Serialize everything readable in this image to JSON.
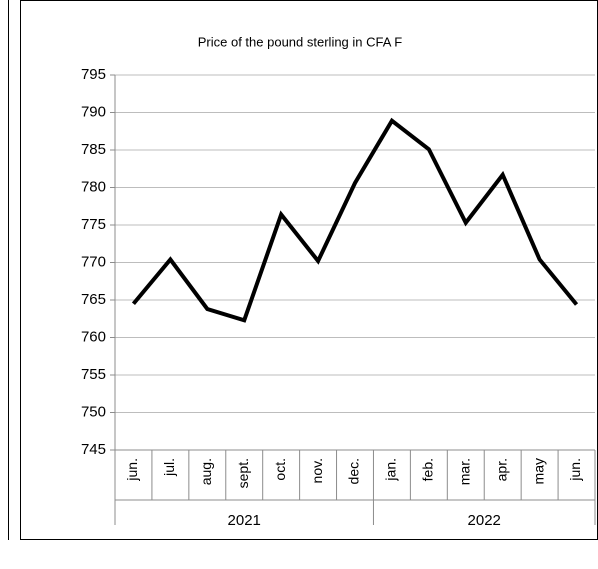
{
  "chart_data": {
    "type": "line",
    "title": "Price of the pound sterling in CFA F",
    "groups": [
      {
        "label": "2021",
        "categories": [
          "jun.",
          "jul.",
          "aug.",
          "sept.",
          "oct.",
          "nov.",
          "dec."
        ]
      },
      {
        "label": "2022",
        "categories": [
          "jan.",
          "feb.",
          "mar.",
          "apr.",
          "may",
          "jun."
        ]
      }
    ],
    "values": [
      764.5,
      770.4,
      763.8,
      762.3,
      776.4,
      770.2,
      780.6,
      788.9,
      785.1,
      775.3,
      781.7,
      770.4,
      764.4
    ],
    "color": "#000000",
    "ylim": [
      745,
      795
    ],
    "yticks": [
      745,
      750,
      755,
      760,
      765,
      770,
      775,
      780,
      785,
      790,
      795
    ],
    "grid": true
  }
}
